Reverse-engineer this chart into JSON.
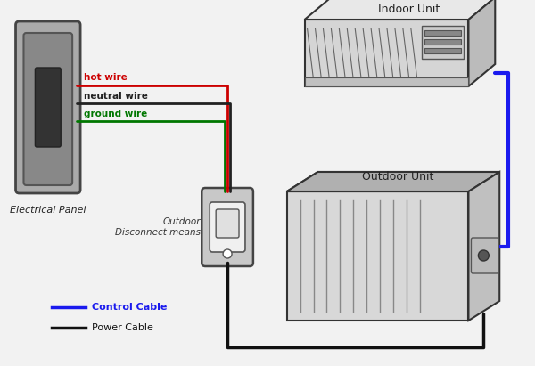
{
  "bg_color": "#f2f2f2",
  "hot_wire_color": "#cc0000",
  "neutral_wire_color": "#222222",
  "ground_wire_color": "#007700",
  "control_cable_color": "#1a1aee",
  "power_cable_color": "#111111",
  "legend_labels": [
    "Control Cable",
    "Power Cable"
  ],
  "panel_label": "Electrical Panel",
  "indoor_label": "Indoor Unit",
  "outdoor_label": "Outdoor Unit",
  "disconnect_label": "Outdoor\nDisconnect means"
}
